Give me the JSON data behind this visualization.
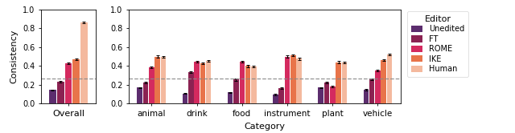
{
  "editors": [
    "Unedited",
    "FT",
    "ROME",
    "IKE",
    "Human"
  ],
  "colors": [
    "#5c2d6e",
    "#8b2252",
    "#d42a5f",
    "#e8744a",
    "#f4b99e"
  ],
  "overall": [
    0.145,
    0.235,
    0.43,
    0.47,
    0.86
  ],
  "overall_err": [
    0.005,
    0.008,
    0.008,
    0.008,
    0.006
  ],
  "categories": [
    "animal",
    "drink",
    "food",
    "instrument",
    "plant",
    "vehicle"
  ],
  "cat_data": {
    "animal": [
      0.17,
      0.225,
      0.385,
      0.5,
      0.495
    ],
    "drink": [
      0.11,
      0.335,
      0.445,
      0.43,
      0.455
    ],
    "food": [
      0.12,
      0.255,
      0.445,
      0.4,
      0.395
    ],
    "instrument": [
      0.1,
      0.165,
      0.5,
      0.515,
      0.475
    ],
    "plant": [
      0.17,
      0.225,
      0.185,
      0.44,
      0.435
    ],
    "vehicle": [
      0.15,
      0.255,
      0.35,
      0.46,
      0.52
    ]
  },
  "cat_err": {
    "animal": [
      0.008,
      0.01,
      0.01,
      0.01,
      0.009
    ],
    "drink": [
      0.007,
      0.012,
      0.01,
      0.01,
      0.01
    ],
    "food": [
      0.007,
      0.01,
      0.01,
      0.01,
      0.008
    ],
    "instrument": [
      0.007,
      0.008,
      0.01,
      0.01,
      0.009
    ],
    "plant": [
      0.008,
      0.01,
      0.009,
      0.01,
      0.01
    ],
    "vehicle": [
      0.006,
      0.008,
      0.01,
      0.01,
      0.01
    ]
  },
  "dashed_line_y": 0.265,
  "ylim": [
    0.0,
    1.0
  ],
  "yticks": [
    0.0,
    0.2,
    0.4,
    0.6,
    0.8,
    1.0
  ],
  "ylabel": "Consistency",
  "xlabel_left": "Overall",
  "xlabel_right": "Category",
  "legend_title": "Editor"
}
